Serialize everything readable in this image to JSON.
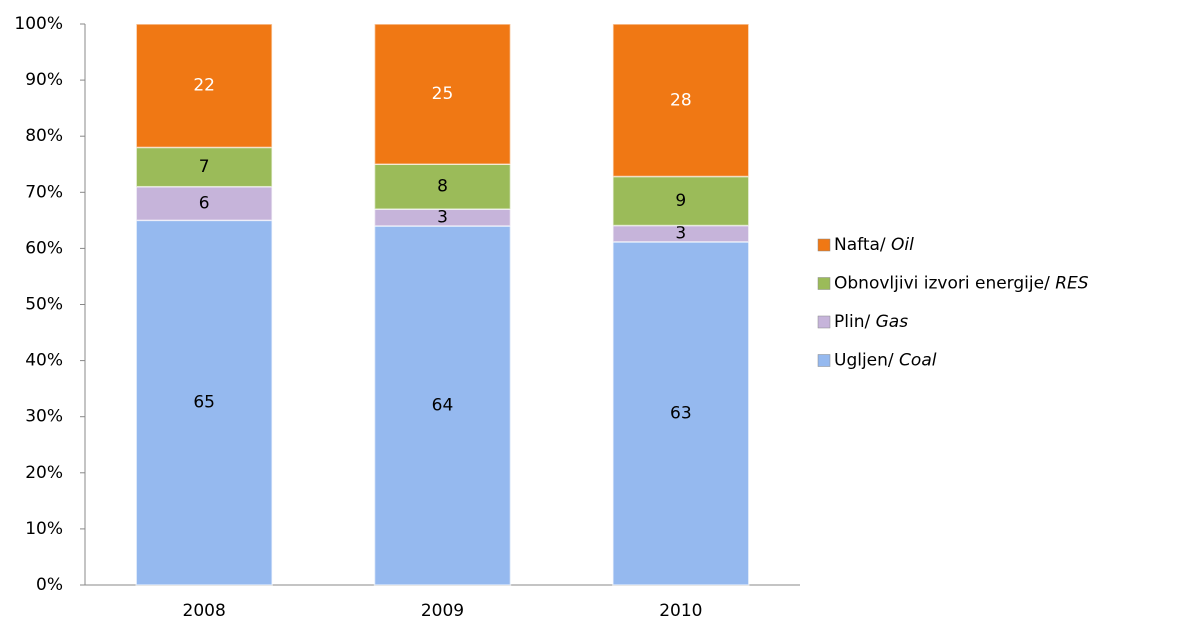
{
  "chart_data": {
    "type": "bar",
    "stacking": "percent",
    "categories": [
      "2008",
      "2009",
      "2010"
    ],
    "series": [
      {
        "name": "Ugljen/ Coal",
        "color": "#95b9ef",
        "values": [
          65,
          64,
          63
        ]
      },
      {
        "name": "Plin/ Gas",
        "color": "#c6b4da",
        "values": [
          6,
          3,
          3
        ]
      },
      {
        "name": "Obnovljivi izvori energije/ RES",
        "color": "#9bbb59",
        "values": [
          7,
          8,
          9
        ]
      },
      {
        "name": "Nafta/ Oil",
        "color": "#f07814",
        "values": [
          22,
          25,
          28
        ]
      }
    ],
    "ylim": [
      0,
      100
    ],
    "yticks": [
      {
        "value": 0,
        "label": "0%"
      },
      {
        "value": 10,
        "label": "10%"
      },
      {
        "value": 20,
        "label": "20%"
      },
      {
        "value": 30,
        "label": "30%"
      },
      {
        "value": 40,
        "label": "40%"
      },
      {
        "value": 50,
        "label": "50%"
      },
      {
        "value": 60,
        "label": "60%"
      },
      {
        "value": 70,
        "label": "70%"
      },
      {
        "value": 80,
        "label": "80%"
      },
      {
        "value": 90,
        "label": "90%"
      },
      {
        "value": 100,
        "label": "100%"
      }
    ],
    "grid": false,
    "legend": "right"
  }
}
